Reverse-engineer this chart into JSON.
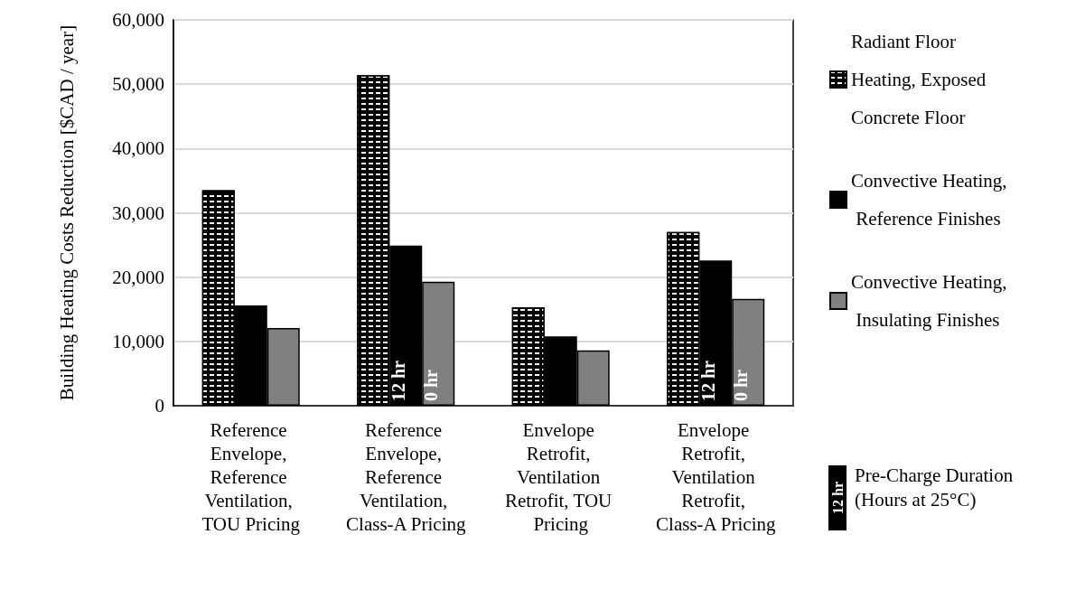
{
  "chart_data": {
    "type": "bar",
    "ylabel": "Building Heating Costs Reduction [$CAD / year]",
    "categories": [
      "Reference Envelope, Reference Ventilation, TOU Pricing",
      "Reference Envelope, Reference Ventilation, Class-A Pricing",
      "Envelope Retrofit, Ventilation Retrofit, TOU Pricing",
      "Envelope Retrofit, Ventilation Retrofit, Class-A Pricing"
    ],
    "series": [
      {
        "name": "Radiant Floor Heating, Exposed Concrete Floor",
        "color": "#000000",
        "values": [
          33500,
          51400,
          15300,
          27000
        ]
      },
      {
        "name": "Convective Heating, Reference Finishes",
        "color": "#000000",
        "values": [
          15600,
          24900,
          10800,
          22600
        ]
      },
      {
        "name": "Convective Heating, Insulating Finishes",
        "color": "#808080",
        "values": [
          12100,
          19300,
          8600,
          16600
        ]
      }
    ],
    "ylim": [
      0,
      60000
    ],
    "yticks": [
      0,
      {
        "value": 10000,
        "label": "10,000"
      },
      {
        "value": 20000,
        "label": "20,000"
      },
      {
        "value": 30000,
        "label": "30,000"
      },
      {
        "value": 40000,
        "label": "40,000"
      },
      {
        "value": 50000,
        "label": "50,000"
      },
      {
        "value": 60000,
        "label": "60,000"
      }
    ],
    "grid": "y",
    "legend": "right",
    "annotations": [
      "12 hr",
      "Pre-Charge Duration (Hours at 25°C)",
      "12 hr",
      "0 hr",
      "12 hr",
      "0 hr"
    ]
  }
}
